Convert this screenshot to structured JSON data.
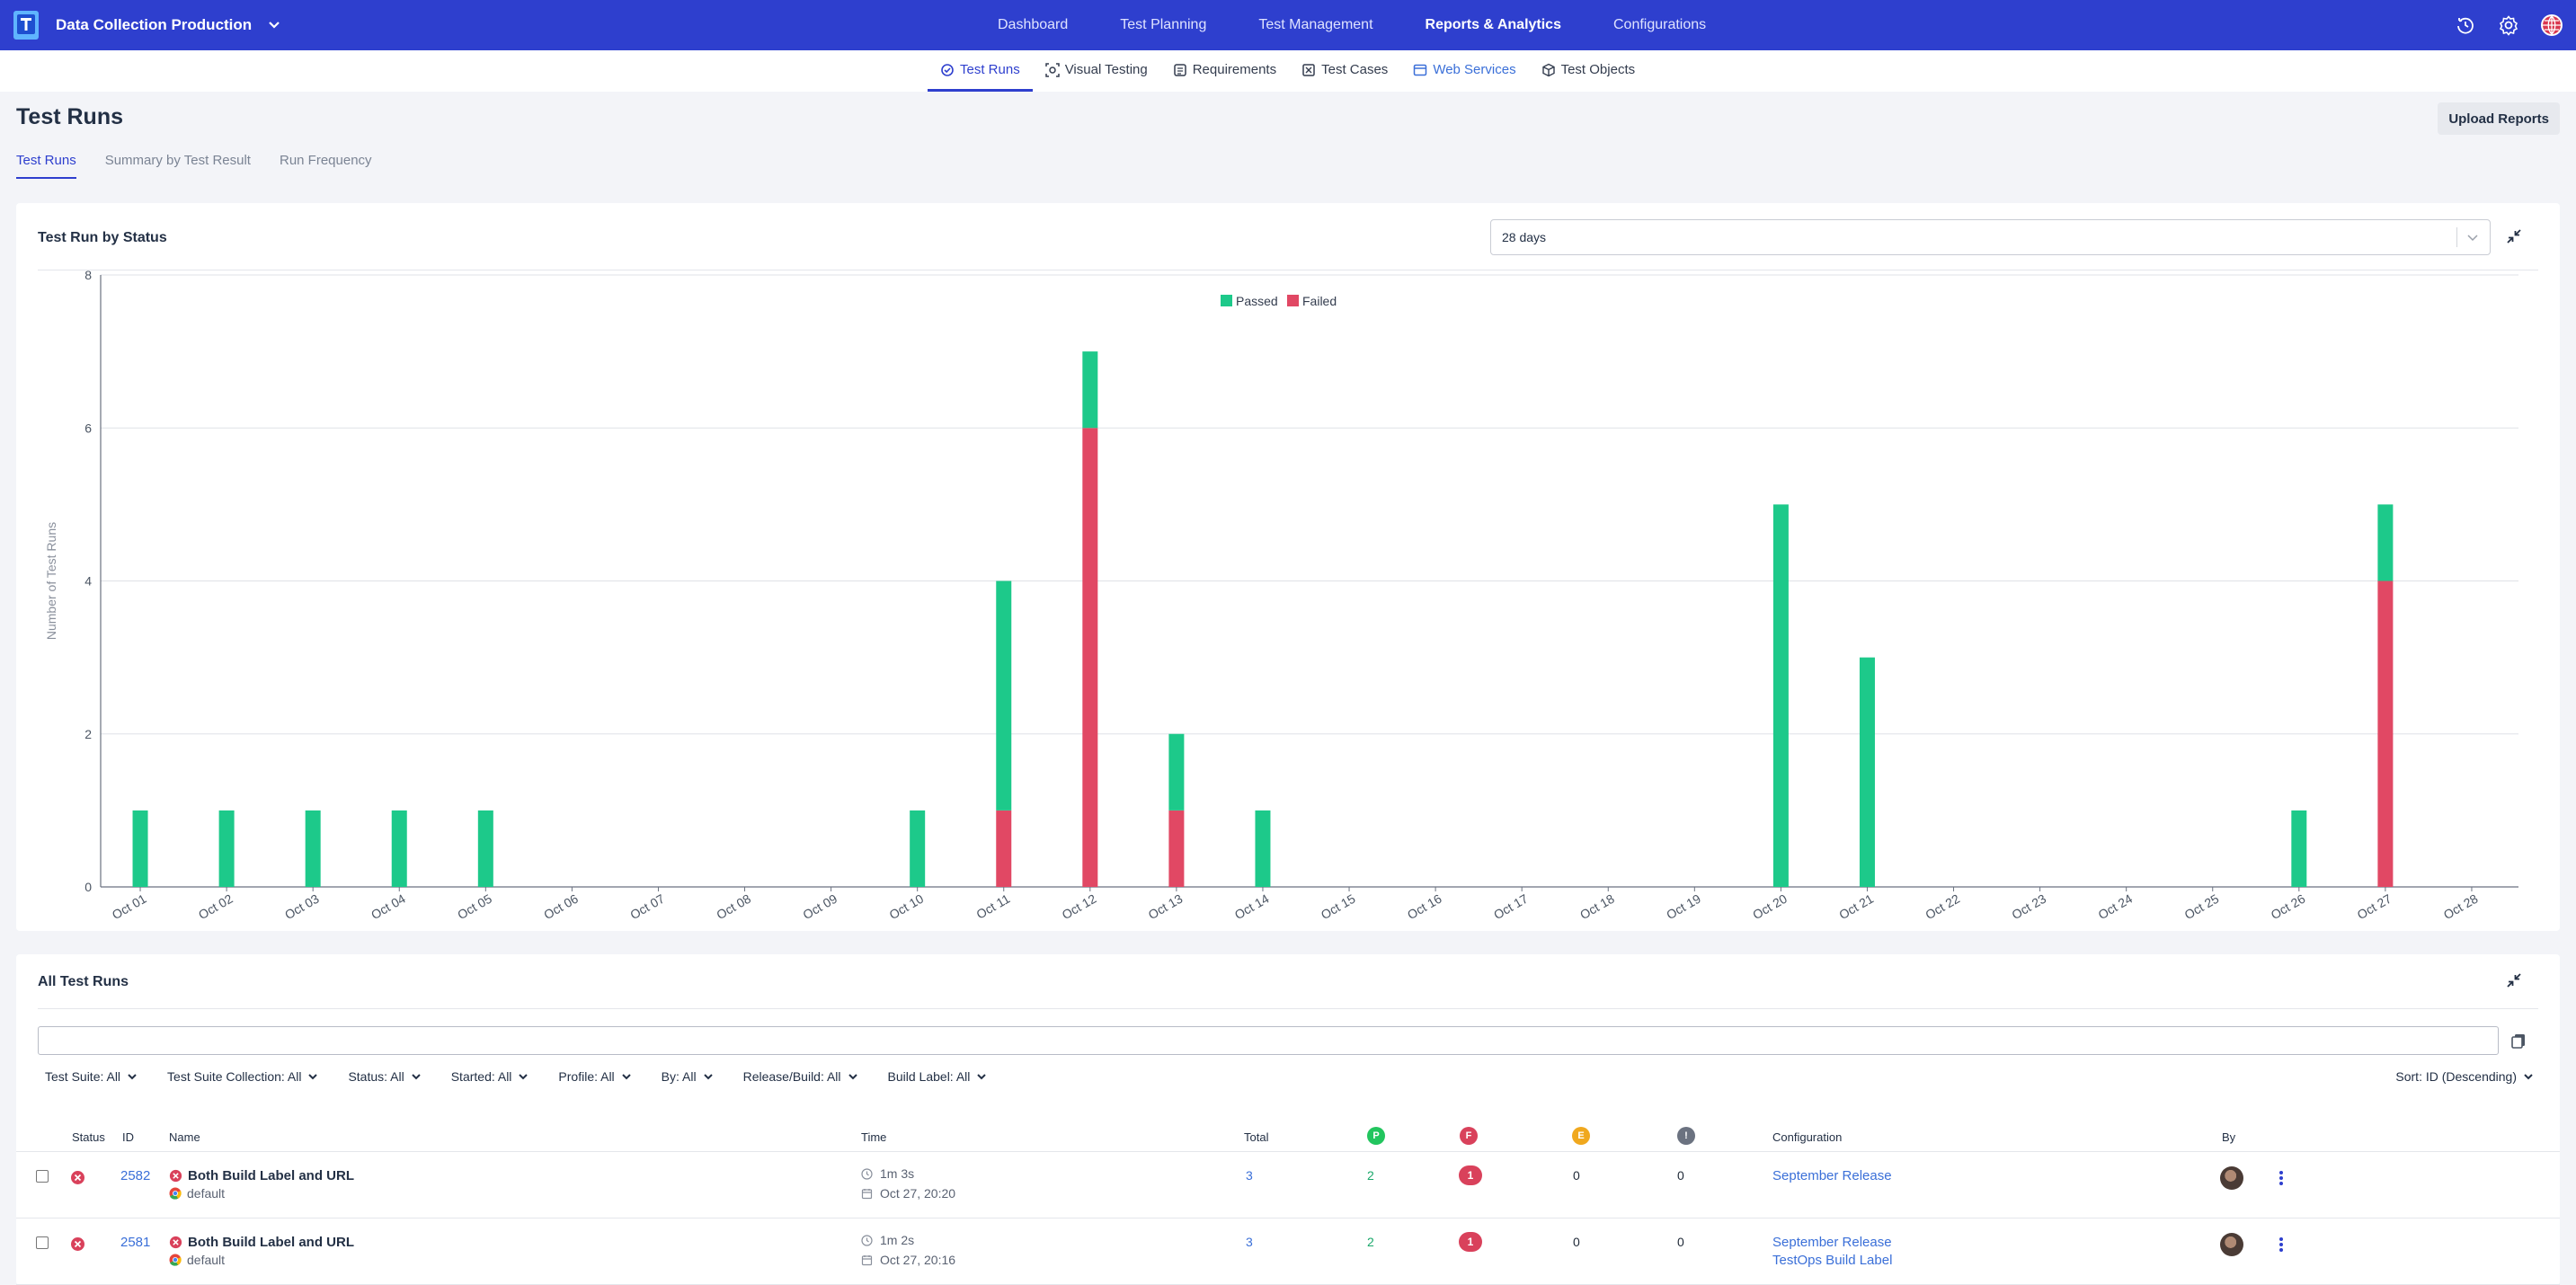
{
  "topbar": {
    "project": "Data Collection Production",
    "nav": [
      "Dashboard",
      "Test Planning",
      "Test Management",
      "Reports & Analytics",
      "Configurations"
    ],
    "active_nav": "Reports & Analytics",
    "icons": [
      "history-icon",
      "settings-icon",
      "globe-icon"
    ]
  },
  "subnav": {
    "tabs": [
      {
        "label": "Test Runs",
        "icon": "test-runs-icon",
        "state": "active"
      },
      {
        "label": "Visual Testing",
        "icon": "visual-testing-icon",
        "state": "normal"
      },
      {
        "label": "Requirements",
        "icon": "requirements-icon",
        "state": "normal"
      },
      {
        "label": "Test Cases",
        "icon": "test-cases-icon",
        "state": "normal"
      },
      {
        "label": "Web Services",
        "icon": "web-services-icon",
        "state": "link"
      },
      {
        "label": "Test Objects",
        "icon": "test-objects-icon",
        "state": "normal"
      }
    ]
  },
  "page": {
    "title": "Test Runs",
    "upload_label": "Upload Reports",
    "tabs": [
      "Test Runs",
      "Summary by Test Result",
      "Run Frequency"
    ],
    "active_tab": "Test Runs"
  },
  "chart_card": {
    "title": "Test Run by Status",
    "range_value": "28 days"
  },
  "chart_data": {
    "type": "bar",
    "stacked": true,
    "title": "",
    "xlabel": "",
    "ylabel": "Number of Test Runs",
    "ylim": [
      0,
      8
    ],
    "yticks": [
      0,
      2,
      4,
      6,
      8
    ],
    "grid": true,
    "legend_position": "top-center",
    "categories": [
      "Oct 01",
      "Oct 02",
      "Oct 03",
      "Oct 04",
      "Oct 05",
      "Oct 06",
      "Oct 07",
      "Oct 08",
      "Oct 09",
      "Oct 10",
      "Oct 11",
      "Oct 12",
      "Oct 13",
      "Oct 14",
      "Oct 15",
      "Oct 16",
      "Oct 17",
      "Oct 18",
      "Oct 19",
      "Oct 20",
      "Oct 21",
      "Oct 22",
      "Oct 23",
      "Oct 24",
      "Oct 25",
      "Oct 26",
      "Oct 27",
      "Oct 28"
    ],
    "series": [
      {
        "name": "Passed",
        "color": "#1dc98a",
        "values": [
          1,
          1,
          1,
          1,
          1,
          0,
          0,
          0,
          0,
          1,
          3,
          1,
          1,
          1,
          0,
          0,
          0,
          0,
          0,
          5,
          3,
          0,
          0,
          0,
          0,
          1,
          1,
          0
        ]
      },
      {
        "name": "Failed",
        "color": "#e14864",
        "values": [
          0,
          0,
          0,
          0,
          0,
          0,
          0,
          0,
          0,
          0,
          1,
          6,
          1,
          0,
          0,
          0,
          0,
          0,
          0,
          0,
          0,
          0,
          0,
          0,
          0,
          0,
          4,
          0
        ]
      }
    ]
  },
  "table": {
    "title": "All Test Runs",
    "search_value": "",
    "filters": [
      "Test Suite: All",
      "Test Suite Collection: All",
      "Status: All",
      "Started: All",
      "Profile: All",
      "By: All",
      "Release/Build: All",
      "Build Label: All"
    ],
    "sort_label": "Sort:  ID (Descending)",
    "headers": {
      "status": "Status",
      "id": "ID",
      "name": "Name",
      "time": "Time",
      "total": "Total",
      "passed": "P",
      "failed": "F",
      "error": "E",
      "incomplete": "!",
      "configuration": "Configuration",
      "by": "By"
    },
    "status_colors": {
      "passed": "#22c55e",
      "failed": "#d9415b",
      "error": "#f0a81e",
      "incomplete": "#6b7280"
    },
    "rows": [
      {
        "id": "2582",
        "name": "Both Build Label and URL",
        "profile": "default",
        "duration": "1m 3s",
        "started": "Oct 27, 20:20",
        "total": "3",
        "passed": "2",
        "failed": "1",
        "error": "0",
        "incomplete": "0",
        "configuration": [
          "September Release"
        ]
      },
      {
        "id": "2581",
        "name": "Both Build Label and URL",
        "profile": "default",
        "duration": "1m 2s",
        "started": "Oct 27, 20:16",
        "total": "3",
        "passed": "2",
        "failed": "1",
        "error": "0",
        "incomplete": "0",
        "configuration": [
          "September Release",
          "TestOps Build Label"
        ]
      }
    ]
  }
}
